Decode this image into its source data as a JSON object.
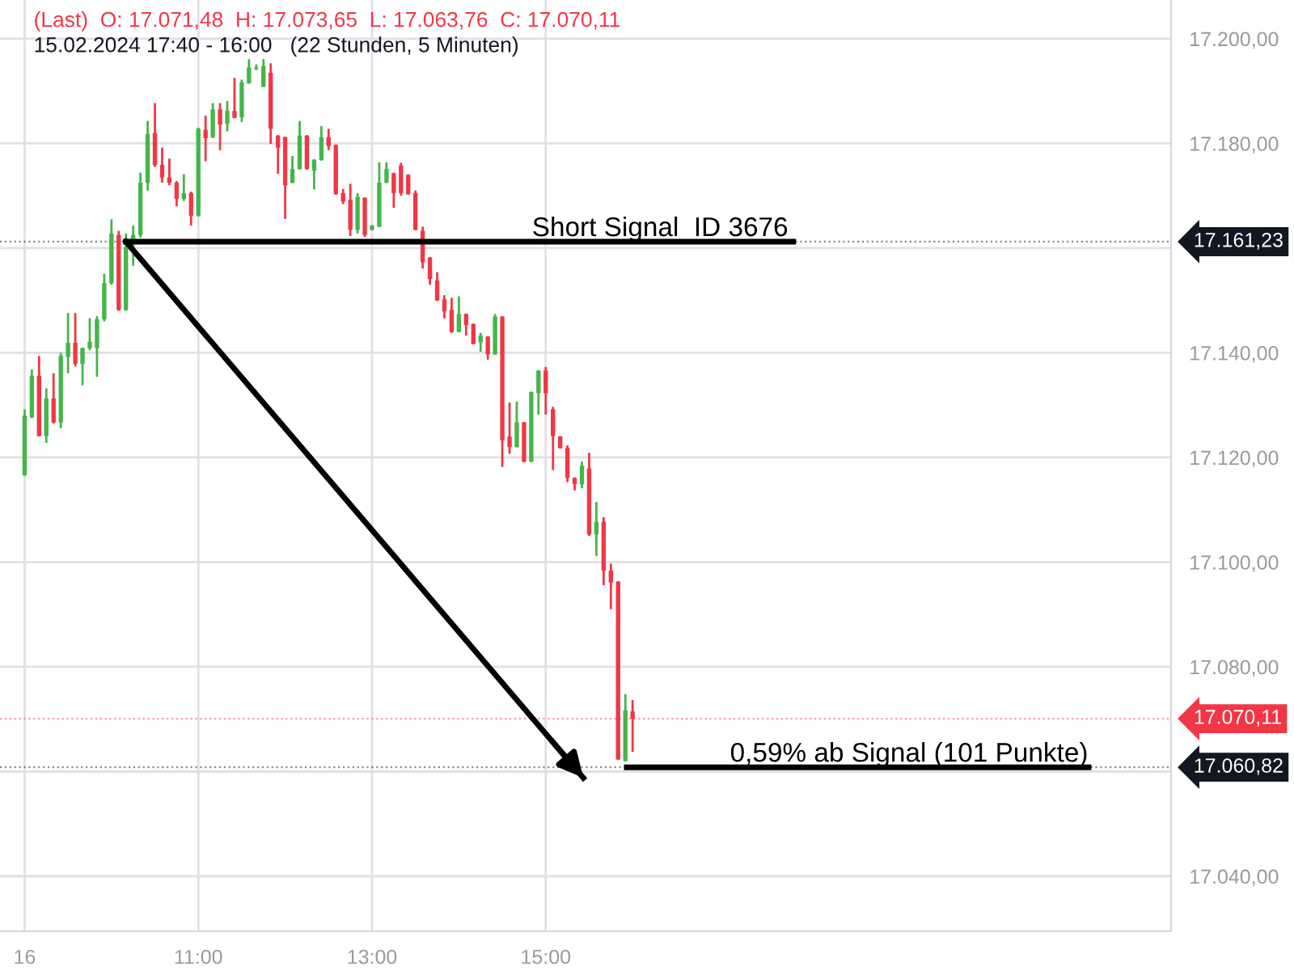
{
  "chart_data": {
    "type": "candlestick",
    "title": "(Last)  O: 17.071,48  H: 17.073,65  L: 17.063,76  C: 17.070,11",
    "subtitle": "15.02.2024 17:40 - 16:00   (22 Stunden, 5 Minuten)",
    "xlim": [
      "2024-02-16T08:43",
      "2024-02-16T22:12"
    ],
    "ylim": [
      17029.5,
      17207.4
    ],
    "xticks": [
      {
        "value": "2024-02-16T09:00",
        "label": "16"
      },
      {
        "value": "2024-02-16T11:00",
        "label": "11:00"
      },
      {
        "value": "2024-02-16T13:00",
        "label": "13:00"
      },
      {
        "value": "2024-02-16T15:00",
        "label": "15:00"
      }
    ],
    "yticks": [
      {
        "value": 17040,
        "label": "17.040,00"
      },
      {
        "value": 17060,
        "label": null
      },
      {
        "value": 17160,
        "label": null
      },
      {
        "value": 17080,
        "label": "17.080,00"
      },
      {
        "value": 17100,
        "label": "17.100,00"
      },
      {
        "value": 17120,
        "label": "17.120,00"
      },
      {
        "value": 17140,
        "label": "17.140,00"
      },
      {
        "value": 17180,
        "label": "17.180,00"
      },
      {
        "value": 17200,
        "label": "17.200,00"
      }
    ],
    "grid": true,
    "series": [
      {
        "x": [
          "2024-02-16T09:00",
          "2024-02-16T09:05",
          "2024-02-16T09:10",
          "2024-02-16T09:15",
          "2024-02-16T09:20",
          "2024-02-16T09:25",
          "2024-02-16T09:30",
          "2024-02-16T09:35",
          "2024-02-16T09:40",
          "2024-02-16T09:45",
          "2024-02-16T09:50",
          "2024-02-16T09:55",
          "2024-02-16T10:00",
          "2024-02-16T10:05",
          "2024-02-16T10:10",
          "2024-02-16T10:15",
          "2024-02-16T10:20",
          "2024-02-16T10:25",
          "2024-02-16T10:30",
          "2024-02-16T10:35",
          "2024-02-16T10:40",
          "2024-02-16T10:45",
          "2024-02-16T10:50",
          "2024-02-16T10:55",
          "2024-02-16T11:00",
          "2024-02-16T11:05",
          "2024-02-16T11:10",
          "2024-02-16T11:15",
          "2024-02-16T11:20",
          "2024-02-16T11:25",
          "2024-02-16T11:30",
          "2024-02-16T11:35",
          "2024-02-16T11:40",
          "2024-02-16T11:45",
          "2024-02-16T11:50",
          "2024-02-16T11:55",
          "2024-02-16T12:00",
          "2024-02-16T12:05",
          "2024-02-16T12:10",
          "2024-02-16T12:15",
          "2024-02-16T12:20",
          "2024-02-16T12:25",
          "2024-02-16T12:30",
          "2024-02-16T12:35",
          "2024-02-16T12:40",
          "2024-02-16T12:45",
          "2024-02-16T12:50",
          "2024-02-16T12:55",
          "2024-02-16T13:00",
          "2024-02-16T13:05",
          "2024-02-16T13:10",
          "2024-02-16T13:15",
          "2024-02-16T13:20",
          "2024-02-16T13:25",
          "2024-02-16T13:30",
          "2024-02-16T13:35",
          "2024-02-16T13:40",
          "2024-02-16T13:45",
          "2024-02-16T13:50",
          "2024-02-16T13:55",
          "2024-02-16T14:00",
          "2024-02-16T14:05",
          "2024-02-16T14:10",
          "2024-02-16T14:15",
          "2024-02-16T14:20",
          "2024-02-16T14:25",
          "2024-02-16T14:30",
          "2024-02-16T14:35",
          "2024-02-16T14:40",
          "2024-02-16T14:45",
          "2024-02-16T14:50",
          "2024-02-16T14:55",
          "2024-02-16T15:00",
          "2024-02-16T15:05",
          "2024-02-16T15:10",
          "2024-02-16T15:15",
          "2024-02-16T15:20",
          "2024-02-16T15:25",
          "2024-02-16T15:30",
          "2024-02-16T15:35",
          "2024-02-16T15:40",
          "2024-02-16T15:45",
          "2024-02-16T15:50",
          "2024-02-16T15:55",
          "2024-02-16T16:00"
        ],
        "ohlc": [
          [
            17116.6,
            17129.2,
            17116.5,
            17128
          ],
          [
            17127.7,
            17136.8,
            17127.5,
            17135.6
          ],
          [
            17135.6,
            17139.4,
            17124,
            17124.1
          ],
          [
            17124.1,
            17133.2,
            17122.8,
            17131.3
          ],
          [
            17131.3,
            17136.1,
            17126.5,
            17126.7
          ],
          [
            17126.7,
            17140,
            17125.6,
            17139.4
          ],
          [
            17139.2,
            17147.6,
            17136.1,
            17141.9
          ],
          [
            17141.9,
            17147.6,
            17137.4,
            17137.9
          ],
          [
            17137.9,
            17141,
            17133.8,
            17140.9
          ],
          [
            17140.9,
            17146.6,
            17140.5,
            17142.1
          ],
          [
            17140.9,
            17147,
            17135.4,
            17146.4
          ],
          [
            17146.4,
            17155.1,
            17146,
            17153.3
          ],
          [
            17153.3,
            17165.5,
            17153,
            17162.8
          ],
          [
            17162.5,
            17163.3,
            17148,
            17148.2
          ],
          [
            17148.2,
            17162.8,
            17148,
            17160.2
          ],
          [
            17160.7,
            17164.3,
            17156.6,
            17162.5
          ],
          [
            17162.5,
            17174.4,
            17162,
            17172.5
          ],
          [
            17172.5,
            17184.3,
            17171,
            17181.8
          ],
          [
            17182,
            17187.7,
            17175.5,
            17175.9
          ],
          [
            17175.9,
            17179.2,
            17172.5,
            17173.5
          ],
          [
            17173.5,
            17177.1,
            17172,
            17172.5
          ],
          [
            17172.5,
            17172.8,
            17168,
            17169.4
          ],
          [
            17169.4,
            17174.1,
            17169,
            17170.5
          ],
          [
            17170.5,
            17170.8,
            17164.3,
            17166.2
          ],
          [
            17166.2,
            17183,
            17166,
            17182.8
          ],
          [
            17182.6,
            17185.3,
            17176.6,
            17181
          ],
          [
            17181.2,
            17187.7,
            17181,
            17186.5
          ],
          [
            17186.5,
            17187.7,
            17178.7,
            17183.6
          ],
          [
            17183.8,
            17188.1,
            17182.3,
            17186.2
          ],
          [
            17186.2,
            17192.5,
            17184.8,
            17184.9
          ],
          [
            17185,
            17192.2,
            17184.1,
            17191.7
          ],
          [
            17191.5,
            17196.1,
            17191.4,
            17194.5
          ],
          [
            17194.3,
            17195.1,
            17194,
            17194.5
          ],
          [
            17190.8,
            17196.1,
            17190.8,
            17194.8
          ],
          [
            17193.5,
            17195.3,
            17179.9,
            17182.8
          ],
          [
            17181.5,
            17181.6,
            17174.2,
            17179.2
          ],
          [
            17181.2,
            17181.3,
            17165.6,
            17172
          ],
          [
            17172.5,
            17177.6,
            17172.4,
            17175.1
          ],
          [
            17175.1,
            17184.3,
            17175,
            17181.5
          ],
          [
            17181.5,
            17181.6,
            17175,
            17175.1
          ],
          [
            17174.8,
            17177,
            17171.2,
            17176.9
          ],
          [
            17176.8,
            17183.3,
            17176.7,
            17181.2
          ],
          [
            17181.2,
            17182.8,
            17178.7,
            17179.5
          ],
          [
            17179.7,
            17179.8,
            17170.2,
            17170.3
          ],
          [
            17170.5,
            17171.3,
            17168.4,
            17168.9
          ],
          [
            17169.2,
            17172.3,
            17162.3,
            17163.5
          ],
          [
            17163.5,
            17170.5,
            17162.8,
            17169.8
          ],
          [
            17169.6,
            17169.7,
            17162.1,
            17162.5
          ],
          [
            17163.5,
            17164.4,
            17163.4,
            17164.3
          ],
          [
            17164.1,
            17176.4,
            17164,
            17172.5
          ],
          [
            17172.5,
            17176.4,
            17172.4,
            17175.1
          ],
          [
            17174.3,
            17174.4,
            17167.7,
            17170.5
          ],
          [
            17175.8,
            17176.3,
            17170,
            17170.5
          ],
          [
            17174,
            17174.1,
            17170.2,
            17170.3
          ],
          [
            17170.5,
            17171,
            17163.4,
            17163.5
          ],
          [
            17163.3,
            17164.1,
            17156.1,
            17157.3
          ],
          [
            17158.2,
            17158.3,
            17153,
            17154.1
          ],
          [
            17153.8,
            17155.4,
            17149.9,
            17150
          ],
          [
            17150.2,
            17151,
            17146.6,
            17147.9
          ],
          [
            17148.2,
            17150.5,
            17143.8,
            17144
          ],
          [
            17144,
            17150.8,
            17143.9,
            17147.4
          ],
          [
            17147.4,
            17147.5,
            17143.3,
            17145.3
          ],
          [
            17145.5,
            17145.6,
            17141.6,
            17141.7
          ],
          [
            17142,
            17143.8,
            17140.2,
            17143.3
          ],
          [
            17143.1,
            17143.2,
            17138.7,
            17139.7
          ],
          [
            17139.7,
            17147.4,
            17139.6,
            17146.9
          ],
          [
            17146.9,
            17147,
            17118.2,
            17123.3
          ],
          [
            17124,
            17130.5,
            17120.7,
            17122
          ],
          [
            17122,
            17130.7,
            17121.9,
            17126.7
          ],
          [
            17126.7,
            17126.8,
            17119.1,
            17119.2
          ],
          [
            17119.2,
            17132.6,
            17119.1,
            17132.5
          ],
          [
            17132.3,
            17136.7,
            17128.2,
            17136.6
          ],
          [
            17136.6,
            17137.3,
            17128.2,
            17132.3
          ],
          [
            17129.2,
            17129.7,
            17117.6,
            17124.1
          ],
          [
            17124,
            17124.1,
            17121.7,
            17121.8
          ],
          [
            17121.8,
            17122.3,
            17115.3,
            17116.1
          ],
          [
            17116.1,
            17116.2,
            17113.7,
            17114.9
          ],
          [
            17114.9,
            17119.2,
            17114.1,
            17118.4
          ],
          [
            17117.9,
            17120.9,
            17105,
            17105.3
          ],
          [
            17105.3,
            17111.5,
            17101.2,
            17107.7
          ],
          [
            17107.7,
            17108.6,
            17095.6,
            17098.4
          ],
          [
            17098.4,
            17099.7,
            17091,
            17096.1
          ],
          [
            17096.3,
            17096.4,
            17062.2,
            17062.3
          ],
          [
            17062,
            17074.8,
            17061.9,
            17071.7
          ],
          [
            17071.48,
            17073.65,
            17063.76,
            17070.11
          ]
        ],
        "colors": [
          "#43b649",
          "#43b649",
          "#f23645",
          "#43b649",
          "#f23645",
          "#43b649",
          "#43b649",
          "#f23645",
          "#43b649",
          "#43b649",
          "#43b649",
          "#43b649",
          "#43b649",
          "#f23645",
          "#43b649",
          "#43b649",
          "#43b649",
          "#43b649",
          "#f23645",
          "#f23645",
          "#f23645",
          "#f23645",
          "#43b649",
          "#f23645",
          "#43b649",
          "#f23645",
          "#43b649",
          "#f23645",
          "#43b649",
          "#f23645",
          "#43b649",
          "#43b649",
          "#43b649",
          "#43b649",
          "#f23645",
          "#f23645",
          "#f23645",
          "#43b649",
          "#43b649",
          "#f23645",
          "#43b649",
          "#43b649",
          "#f23645",
          "#f23645",
          "#f23645",
          "#f23645",
          "#43b649",
          "#f23645",
          "#43b649",
          "#43b649",
          "#43b649",
          "#f23645",
          "#f23645",
          "#f23645",
          "#f23645",
          "#f23645",
          "#f23645",
          "#f23645",
          "#f23645",
          "#f23645",
          "#43b649",
          "#f23645",
          "#f23645",
          "#43b649",
          "#f23645",
          "#43b649",
          "#f23645",
          "#f23645",
          "#43b649",
          "#f23645",
          "#43b649",
          "#43b649",
          "#f23645",
          "#f23645",
          "#f23645",
          "#f23645",
          "#f23645",
          "#43b649",
          "#f23645",
          "#43b649",
          "#f23645",
          "#f23645",
          "#f23645",
          "#43b649",
          "#f23645"
        ]
      },
      {
        "type": "line",
        "color": "#000000",
        "x": [
          "2024-02-16T10:10",
          "2024-02-16T17:51"
        ],
        "values": [
          17161.23,
          17161.23
        ]
      },
      {
        "type": "line",
        "color": "#000000",
        "x": [
          "2024-02-16T15:56",
          "2024-02-16T21:15"
        ],
        "values": [
          17060.82,
          17060.82
        ]
      },
      {
        "type": "line",
        "color": "#000000",
        "x": [
          "2024-02-16T10:10",
          "2024-02-16T15:26"
        ],
        "values": [
          17161.23,
          17058.8
        ]
      }
    ],
    "ref_lines": [
      {
        "axis": "y",
        "value": 17161.23,
        "label": "17.161,23",
        "color": "#131722"
      },
      {
        "axis": "y",
        "value": 17070.11,
        "label": "17.070,11",
        "color": "#f23645"
      },
      {
        "axis": "y",
        "value": 17060.82,
        "label": "17.060,82",
        "color": "#131722"
      }
    ],
    "annotations": [
      {
        "text": "Short Signal  ID 3676",
        "x": "2024-02-16T16:19",
        "y": 17161.23
      },
      {
        "text": "0,59% ab Signal (101 Punkte)",
        "x": "2024-02-16T19:11",
        "y": 17060.82
      }
    ]
  }
}
